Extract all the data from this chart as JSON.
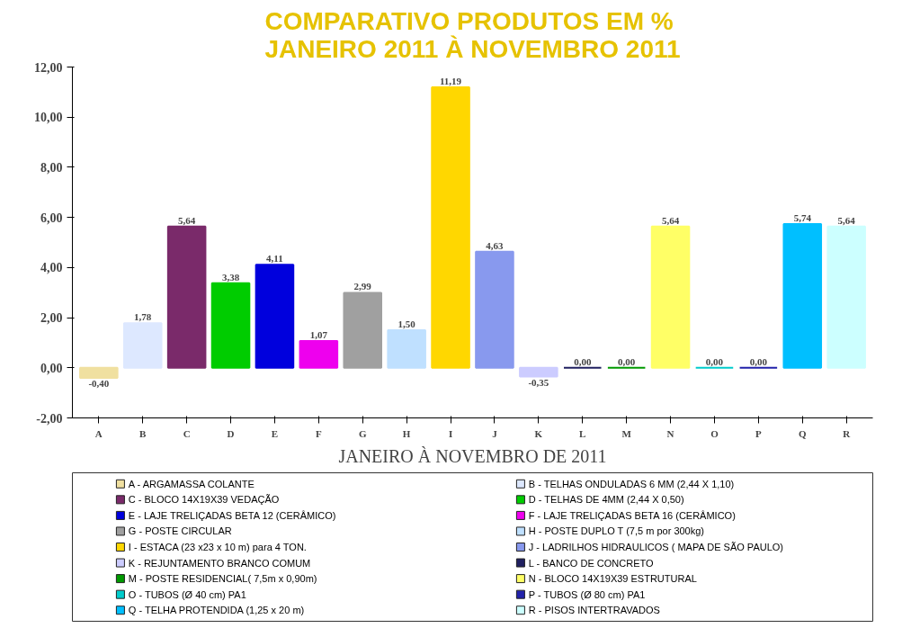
{
  "chart_data": {
    "type": "bar",
    "title": "COMPARATIVO PRODUTOS EM %\nJANEIRO 2011 À NOVEMBRO 2011",
    "xlabel": "JANEIRO À NOVEMBRO DE 2011",
    "categories": [
      "A",
      "B",
      "C",
      "D",
      "E",
      "F",
      "G",
      "H",
      "I",
      "J",
      "K",
      "L",
      "M",
      "N",
      "O",
      "P",
      "Q",
      "R"
    ],
    "series": [
      {
        "name": "A - ARGAMASSA COLANTE",
        "color": "#f0e0a0",
        "values": [
          -0.4,
          null,
          null,
          null,
          null,
          null,
          null,
          null,
          null,
          null,
          null,
          null,
          null,
          null,
          null,
          null,
          null,
          null
        ],
        "value_labels": [
          "-0,40",
          null,
          null,
          null,
          null,
          null,
          null,
          null,
          null,
          null,
          null,
          null,
          null,
          null,
          null,
          null,
          null,
          null
        ]
      },
      {
        "name": "B - TELHAS ONDULADAS 6 MM (2,44 X 1,10)",
        "color": "#dde8ff",
        "values": [
          null,
          1.78,
          null,
          null,
          null,
          null,
          null,
          null,
          null,
          null,
          null,
          null,
          null,
          null,
          null,
          null,
          null,
          null
        ],
        "value_labels": [
          null,
          "1,78",
          null,
          null,
          null,
          null,
          null,
          null,
          null,
          null,
          null,
          null,
          null,
          null,
          null,
          null,
          null,
          null
        ]
      },
      {
        "name": "C - BLOCO 14X19X39 VEDAÇÃO",
        "color": "#7a2a6a",
        "values": [
          null,
          null,
          5.64,
          null,
          null,
          null,
          null,
          null,
          null,
          null,
          null,
          null,
          null,
          null,
          null,
          null,
          null,
          null
        ],
        "value_labels": [
          null,
          null,
          "5,64",
          null,
          null,
          null,
          null,
          null,
          null,
          null,
          null,
          null,
          null,
          null,
          null,
          null,
          null,
          null
        ]
      },
      {
        "name": "D - TELHAS DE 4MM (2,44 X 0,50)",
        "color": "#00cc00",
        "values": [
          null,
          null,
          null,
          3.38,
          null,
          null,
          null,
          null,
          null,
          null,
          null,
          null,
          null,
          null,
          null,
          null,
          null,
          null
        ],
        "value_labels": [
          null,
          null,
          null,
          "3,38",
          null,
          null,
          null,
          null,
          null,
          null,
          null,
          null,
          null,
          null,
          null,
          null,
          null,
          null
        ]
      },
      {
        "name": "E - LAJE TRELIÇADAS BETA 12 (CERÂMICO)",
        "color": "#0000dd",
        "values": [
          null,
          null,
          null,
          null,
          4.11,
          null,
          null,
          null,
          null,
          null,
          null,
          null,
          null,
          null,
          null,
          null,
          null,
          null
        ],
        "value_labels": [
          null,
          null,
          null,
          null,
          "4,11",
          null,
          null,
          null,
          null,
          null,
          null,
          null,
          null,
          null,
          null,
          null,
          null,
          null
        ]
      },
      {
        "name": "F - LAJE TRELIÇADAS BETA 16 (CERÂMICO)",
        "color": "#ee00ee",
        "values": [
          null,
          null,
          null,
          null,
          null,
          1.07,
          null,
          null,
          null,
          null,
          null,
          null,
          null,
          null,
          null,
          null,
          null,
          null
        ],
        "value_labels": [
          null,
          null,
          null,
          null,
          null,
          "1,07",
          null,
          null,
          null,
          null,
          null,
          null,
          null,
          null,
          null,
          null,
          null,
          null
        ]
      },
      {
        "name": "G - POSTE CIRCULAR",
        "color": "#a0a0a0",
        "values": [
          null,
          null,
          null,
          null,
          null,
          null,
          2.99,
          null,
          null,
          null,
          null,
          null,
          null,
          null,
          null,
          null,
          null,
          null
        ],
        "value_labels": [
          null,
          null,
          null,
          null,
          null,
          null,
          "2,99",
          null,
          null,
          null,
          null,
          null,
          null,
          null,
          null,
          null,
          null,
          null
        ]
      },
      {
        "name": "H - POSTE DUPLO T (7,5 m por 300kg)",
        "color": "#bfe0ff",
        "values": [
          null,
          null,
          null,
          null,
          null,
          null,
          null,
          1.5,
          null,
          null,
          null,
          null,
          null,
          null,
          null,
          null,
          null,
          null
        ],
        "value_labels": [
          null,
          null,
          null,
          null,
          null,
          null,
          null,
          "1,50",
          null,
          null,
          null,
          null,
          null,
          null,
          null,
          null,
          null,
          null
        ]
      },
      {
        "name": "I - ESTACA (23 x23 x 10 m) para 4 TON.",
        "color": "#ffd700",
        "values": [
          null,
          null,
          null,
          null,
          null,
          null,
          null,
          null,
          11.19,
          null,
          null,
          null,
          null,
          null,
          null,
          null,
          null,
          null
        ],
        "value_labels": [
          null,
          null,
          null,
          null,
          null,
          null,
          null,
          null,
          "11,19",
          null,
          null,
          null,
          null,
          null,
          null,
          null,
          null,
          null
        ]
      },
      {
        "name": "J - LADRILHOS HIDRAULICOS ( MAPA DE SÃO PAULO)",
        "color": "#8899ee",
        "values": [
          null,
          null,
          null,
          null,
          null,
          null,
          null,
          null,
          null,
          4.63,
          null,
          null,
          null,
          null,
          null,
          null,
          null,
          null
        ],
        "value_labels": [
          null,
          null,
          null,
          null,
          null,
          null,
          null,
          null,
          null,
          "4,63",
          null,
          null,
          null,
          null,
          null,
          null,
          null,
          null
        ]
      },
      {
        "name": "K - REJUNTAMENTO BRANCO COMUM",
        "color": "#ccccff",
        "values": [
          null,
          null,
          null,
          null,
          null,
          null,
          null,
          null,
          null,
          null,
          -0.35,
          null,
          null,
          null,
          null,
          null,
          null,
          null
        ],
        "value_labels": [
          null,
          null,
          null,
          null,
          null,
          null,
          null,
          null,
          null,
          null,
          "-0,35",
          null,
          null,
          null,
          null,
          null,
          null,
          null
        ]
      },
      {
        "name": "L - BANCO DE CONCRETO",
        "color": "#202060",
        "values": [
          null,
          null,
          null,
          null,
          null,
          null,
          null,
          null,
          null,
          null,
          null,
          0.0,
          null,
          null,
          null,
          null,
          null,
          null
        ],
        "value_labels": [
          null,
          null,
          null,
          null,
          null,
          null,
          null,
          null,
          null,
          null,
          null,
          "0,00",
          null,
          null,
          null,
          null,
          null,
          null
        ]
      },
      {
        "name": "M - POSTE RESIDENCIAL( 7,5m x 0,90m)",
        "color": "#009900",
        "values": [
          null,
          null,
          null,
          null,
          null,
          null,
          null,
          null,
          null,
          null,
          null,
          null,
          0.0,
          null,
          null,
          null,
          null,
          null
        ],
        "value_labels": [
          null,
          null,
          null,
          null,
          null,
          null,
          null,
          null,
          null,
          null,
          null,
          null,
          "0,00",
          null,
          null,
          null,
          null,
          null
        ]
      },
      {
        "name": "N - BLOCO 14X19X39 ESTRUTURAL",
        "color": "#ffff66",
        "values": [
          null,
          null,
          null,
          null,
          null,
          null,
          null,
          null,
          null,
          null,
          null,
          null,
          null,
          5.64,
          null,
          null,
          null,
          null
        ],
        "value_labels": [
          null,
          null,
          null,
          null,
          null,
          null,
          null,
          null,
          null,
          null,
          null,
          null,
          null,
          "5,64",
          null,
          null,
          null,
          null
        ]
      },
      {
        "name": "O - TUBOS (Ø 40 cm) PA1",
        "color": "#00cccc",
        "values": [
          null,
          null,
          null,
          null,
          null,
          null,
          null,
          null,
          null,
          null,
          null,
          null,
          null,
          null,
          0.0,
          null,
          null,
          null
        ],
        "value_labels": [
          null,
          null,
          null,
          null,
          null,
          null,
          null,
          null,
          null,
          null,
          null,
          null,
          null,
          null,
          "0,00",
          null,
          null,
          null
        ]
      },
      {
        "name": "P - TUBOS (Ø 80 cm) PA1",
        "color": "#2222aa",
        "values": [
          null,
          null,
          null,
          null,
          null,
          null,
          null,
          null,
          null,
          null,
          null,
          null,
          null,
          null,
          null,
          0.0,
          null,
          null
        ],
        "value_labels": [
          null,
          null,
          null,
          null,
          null,
          null,
          null,
          null,
          null,
          null,
          null,
          null,
          null,
          null,
          null,
          "0,00",
          null,
          null
        ]
      },
      {
        "name": "Q - TELHA PROTENDIDA (1,25 x 20 m)",
        "color": "#00bfff",
        "values": [
          null,
          null,
          null,
          null,
          null,
          null,
          null,
          null,
          null,
          null,
          null,
          null,
          null,
          null,
          null,
          null,
          5.74,
          null
        ],
        "value_labels": [
          null,
          null,
          null,
          null,
          null,
          null,
          null,
          null,
          null,
          null,
          null,
          null,
          null,
          null,
          null,
          null,
          "5,74",
          null
        ]
      },
      {
        "name": "R - PISOS INTERTRAVADOS",
        "color": "#ccffff",
        "values": [
          null,
          null,
          null,
          null,
          null,
          null,
          null,
          null,
          null,
          null,
          null,
          null,
          null,
          null,
          null,
          null,
          null,
          5.64
        ],
        "value_labels": [
          null,
          null,
          null,
          null,
          null,
          null,
          null,
          null,
          null,
          null,
          null,
          null,
          null,
          null,
          null,
          null,
          null,
          "5,64"
        ]
      }
    ],
    "ylim": [
      -2,
      12
    ],
    "yticks": [
      {
        "value": -2,
        "label": "-2,00"
      },
      {
        "value": 0,
        "label": "0,00"
      },
      {
        "value": 2,
        "label": "2,00"
      },
      {
        "value": 4,
        "label": "4,00"
      },
      {
        "value": 6,
        "label": "6,00"
      },
      {
        "value": 8,
        "label": "8,00"
      },
      {
        "value": 10,
        "label": "10,00"
      },
      {
        "value": 12,
        "label": "12,00"
      }
    ],
    "grid": false,
    "legend": "bottom"
  }
}
